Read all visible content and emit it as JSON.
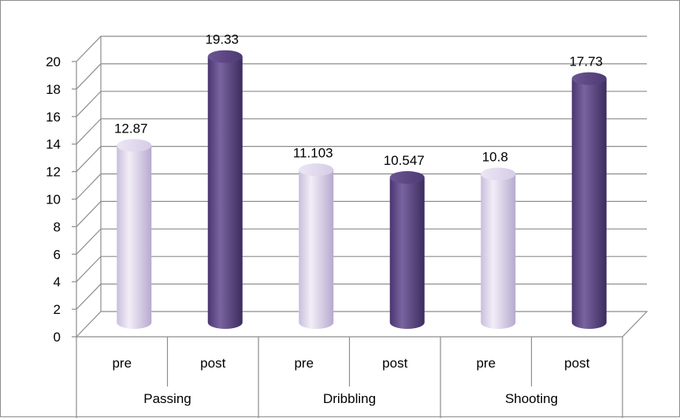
{
  "chart_data": {
    "type": "bar",
    "style": "3d-cylinder",
    "title": "",
    "xlabel": "",
    "ylabel": "",
    "ylim": [
      0,
      20
    ],
    "yticks": [
      "0",
      "2",
      "4",
      "6",
      "8",
      "10",
      "12",
      "14",
      "16",
      "18",
      "20"
    ],
    "grid": true,
    "legend": "none",
    "groups": [
      "Passing",
      "Dribbling",
      "Shooting"
    ],
    "categories": [
      "pre",
      "post",
      "pre",
      "post",
      "pre",
      "post"
    ],
    "values": [
      12.87,
      19.33,
      11.103,
      10.547,
      10.8,
      17.73
    ],
    "data_labels": [
      "12.87",
      "19.33",
      "11.103",
      "10.547",
      "10.8",
      "17.73"
    ],
    "colors": {
      "pre": "#d9cfe8",
      "post": "#5e4785"
    }
  }
}
